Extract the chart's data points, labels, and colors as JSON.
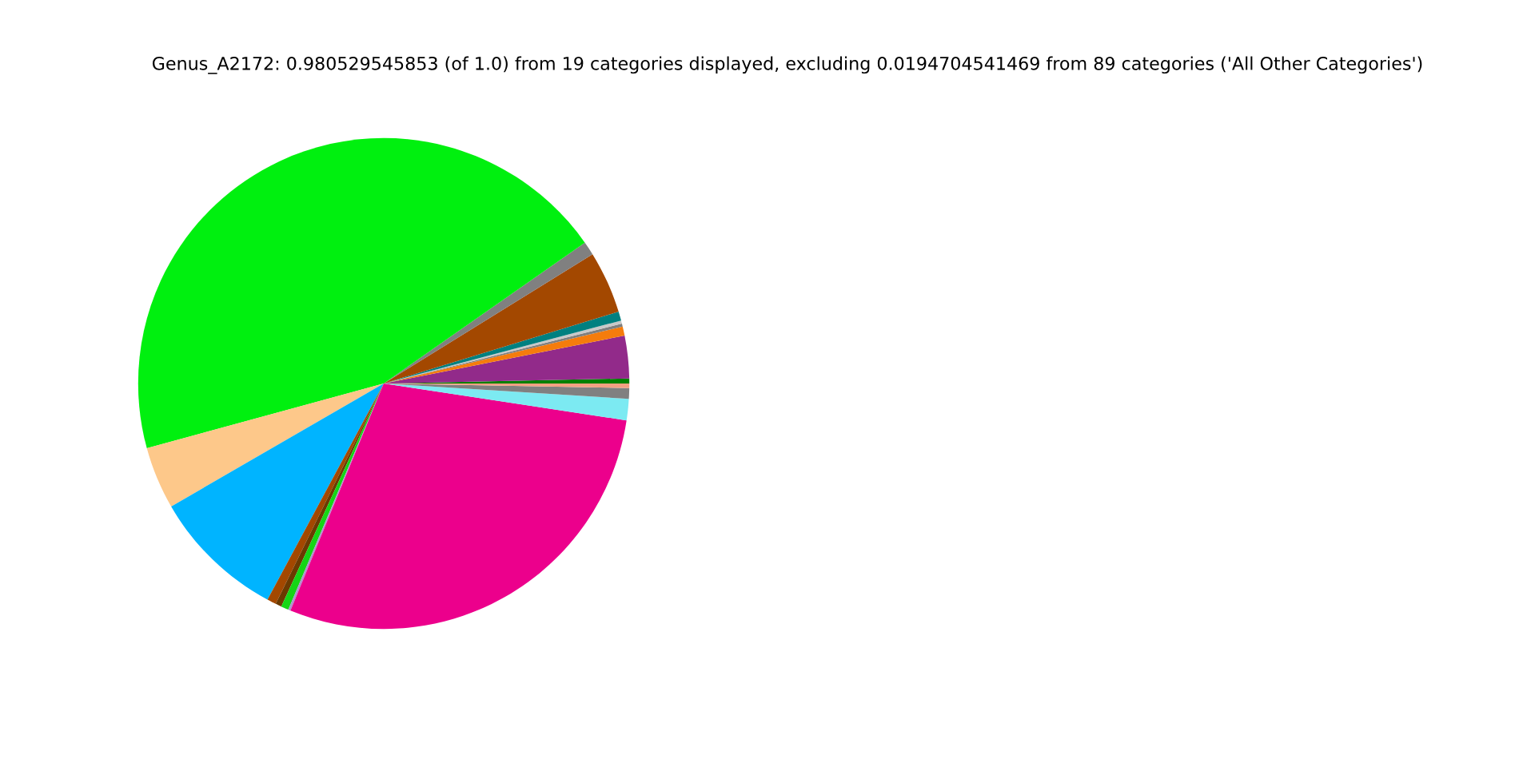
{
  "chart_data": {
    "type": "pie",
    "title": "Genus_A2172: 0.980529545853 (of 1.0) from 19 categories displayed, excluding 0.0194704541469 from 89 categories ('All Other Categories')",
    "categories": [
      null,
      null,
      null,
      null,
      null,
      null,
      null,
      null,
      null,
      null,
      null,
      null,
      null,
      null,
      null,
      null,
      null,
      null,
      null
    ],
    "values": [
      0.33,
      2.8,
      0.6,
      0.2,
      0.2,
      0.6,
      4.1,
      0.9,
      44.52,
      4.1,
      8.8,
      0.6,
      0.4,
      0.5,
      0.15,
      28.8,
      1.4,
      0.7,
      0.3
    ],
    "colors": [
      "#008000",
      "#922a8a",
      "#f57c0c",
      "#7f7f7f",
      "#c8c8c8",
      "#008080",
      "#a34800",
      "#808080",
      "#00f00f",
      "#fdc88a",
      "#00b4ff",
      "#a34800",
      "#6b3a00",
      "#15d615",
      "#b090d0",
      "#ec008c",
      "#7ceaf2",
      "#808080",
      "#f4a082"
    ]
  }
}
